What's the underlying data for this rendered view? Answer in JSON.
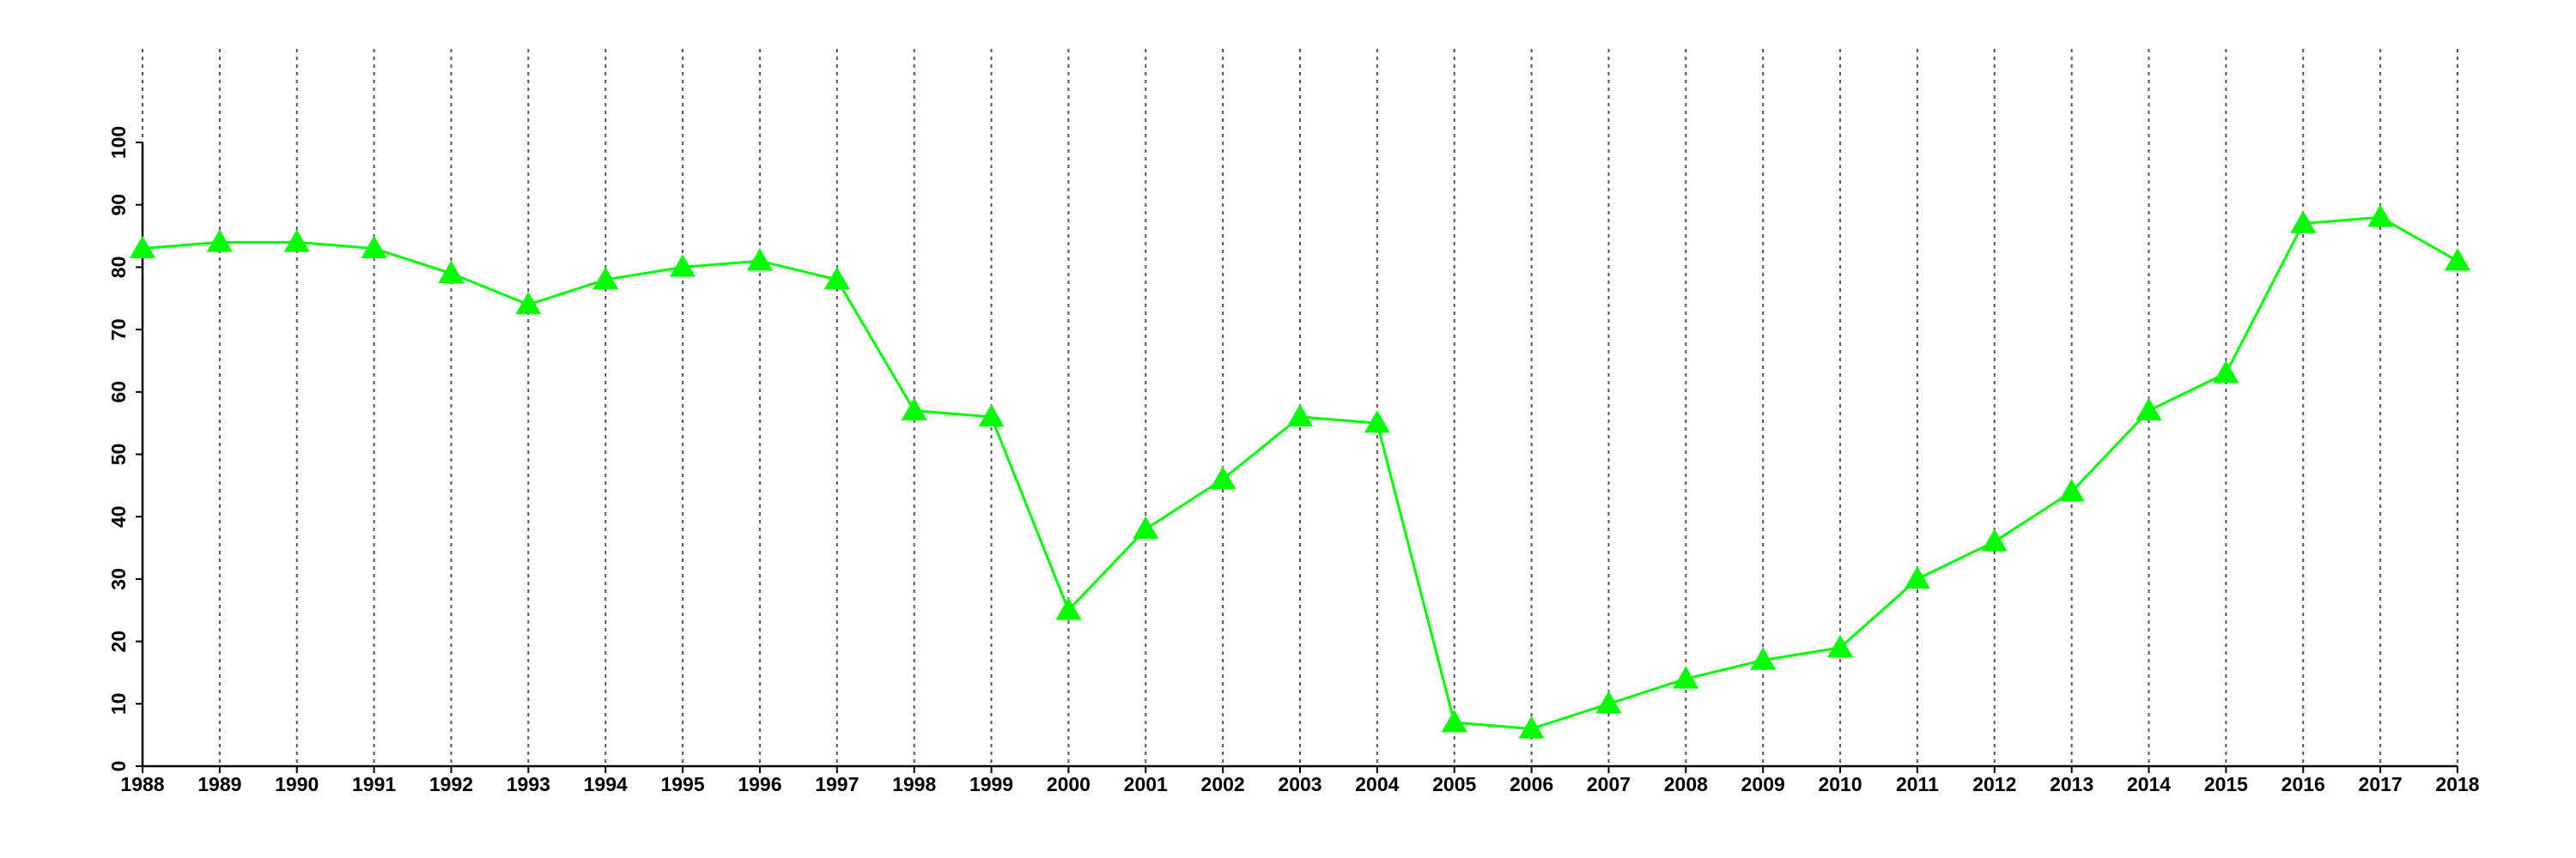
{
  "chart_data": {
    "type": "line",
    "x": [
      1988,
      1989,
      1990,
      1991,
      1992,
      1993,
      1994,
      1995,
      1996,
      1997,
      1998,
      1999,
      2000,
      2001,
      2002,
      2003,
      2004,
      2005,
      2006,
      2007,
      2008,
      2009,
      2010,
      2011,
      2012,
      2013,
      2014,
      2015,
      2016,
      2017,
      2018
    ],
    "values": [
      83,
      84,
      84,
      83,
      79,
      74,
      78,
      80,
      81,
      78,
      57,
      56,
      25,
      38,
      46,
      56,
      55,
      7,
      6,
      10,
      14,
      17,
      19,
      30,
      36,
      44,
      57,
      63,
      87,
      88,
      81
    ],
    "color": "#00ff00",
    "marker": "triangle",
    "xlim": [
      1988,
      2018
    ],
    "xticks": [
      1988,
      1989,
      1990,
      1991,
      1992,
      1993,
      1994,
      1995,
      1996,
      1997,
      1998,
      1999,
      2000,
      2001,
      2002,
      2003,
      2004,
      2005,
      2006,
      2007,
      2008,
      2009,
      2010,
      2011,
      2012,
      2013,
      2014,
      2015,
      2016,
      2017,
      2018
    ],
    "ylim": [
      0,
      100
    ],
    "yticks": [
      0,
      10,
      20,
      30,
      40,
      50,
      60,
      70,
      80,
      90,
      100
    ],
    "grid": "x"
  }
}
